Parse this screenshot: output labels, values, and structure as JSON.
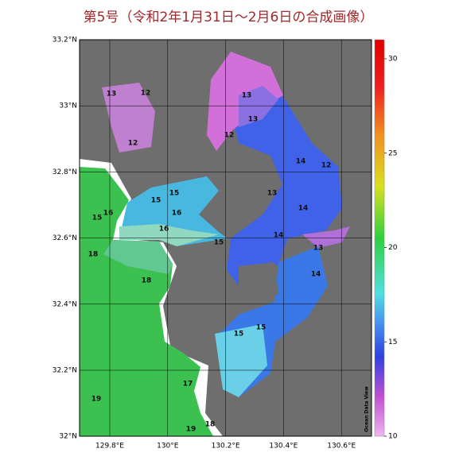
{
  "title": "第5号（令和2年1月31日～2月6日の合成画像）",
  "lat_labels": [
    "33.2°N",
    "33°N",
    "32.8°N",
    "32.6°N",
    "32.4°N",
    "32.2°N",
    "32°N"
  ],
  "lon_labels": [
    "129.8°E",
    "130°E",
    "130.2°E",
    "130.4°E",
    "130.6°E"
  ],
  "colorbar": {
    "ticks": [
      10,
      15,
      20,
      25,
      30
    ]
  },
  "contour_labels": [
    "13",
    "12",
    "12",
    "12",
    "13",
    "13",
    "14",
    "12",
    "13",
    "14",
    "15",
    "15",
    "16",
    "16",
    "15",
    "14",
    "13",
    "14",
    "15",
    "15",
    "17",
    "18",
    "18",
    "19",
    "19",
    "18",
    "15",
    "16"
  ],
  "watermark": "Ocean Data View"
}
